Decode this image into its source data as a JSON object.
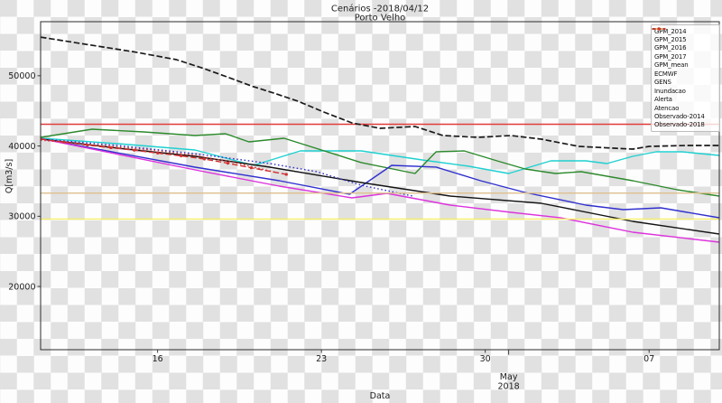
{
  "title": {
    "line1": "Cenários -2018/04/12",
    "line2": "Porto Velho"
  },
  "axes": {
    "ylabel": "Q[m3/s]",
    "xlabel": "Data"
  },
  "chart_data": {
    "type": "line",
    "title": "Cenários -2018/04/12 Porto Velho",
    "xlabel": "Data",
    "ylabel": "Q[m3/s]",
    "x_unit": "days since 2018-04-11",
    "xlim_dates": [
      "2018-04-11",
      "2018-05-10"
    ],
    "xlim": [
      0,
      29
    ],
    "ylim": [
      11000,
      57700
    ],
    "grid": false,
    "legend_position": "upper right",
    "yticks": [
      {
        "value": 50000,
        "label": "50000"
      },
      {
        "value": 40000,
        "label": "40000"
      },
      {
        "value": 30000,
        "label": "30000"
      },
      {
        "value": 20000,
        "label": "20000"
      }
    ],
    "xticks": [
      {
        "day": 5,
        "label": "16"
      },
      {
        "day": 12,
        "label": "23"
      },
      {
        "day": 19,
        "label": "30"
      },
      {
        "day": 26,
        "label": "07"
      }
    ],
    "month_tick": {
      "day": 20,
      "label": "May",
      "year": "2018"
    },
    "series": [
      {
        "name": "GPM_2014",
        "color": "#1fd0d0",
        "style": "solid",
        "marker": false,
        "points": [
          [
            0,
            41100
          ],
          [
            3.3,
            40330
          ],
          [
            6.6,
            39430
          ],
          [
            9.1,
            37250
          ],
          [
            11.1,
            39300
          ],
          [
            13.7,
            39300
          ],
          [
            16.3,
            38020
          ],
          [
            18.3,
            37120
          ],
          [
            20,
            36090
          ],
          [
            21.8,
            37890
          ],
          [
            23.3,
            37890
          ],
          [
            24.2,
            37500
          ],
          [
            25.3,
            38530
          ],
          [
            26.3,
            39170
          ],
          [
            27.4,
            39170
          ],
          [
            29,
            38660
          ]
        ]
      },
      {
        "name": "GPM_2015",
        "color": "#2d8a2d",
        "style": "solid",
        "marker": false,
        "points": [
          [
            0,
            41230
          ],
          [
            2.2,
            42390
          ],
          [
            4.4,
            42000
          ],
          [
            6.6,
            41490
          ],
          [
            7.9,
            41750
          ],
          [
            8.9,
            40590
          ],
          [
            10.4,
            41110
          ],
          [
            13.7,
            37640
          ],
          [
            16,
            36090
          ],
          [
            16.9,
            39170
          ],
          [
            18.1,
            39300
          ],
          [
            19.5,
            37890
          ],
          [
            20.7,
            36730
          ],
          [
            22,
            36090
          ],
          [
            23.1,
            36350
          ],
          [
            25.3,
            35060
          ],
          [
            27.2,
            33770
          ],
          [
            29,
            32870
          ]
        ]
      },
      {
        "name": "GPM_2016",
        "color": "#3030cf",
        "style": "solid",
        "marker": false,
        "points": [
          [
            0,
            41050
          ],
          [
            6.6,
            36990
          ],
          [
            10.2,
            35060
          ],
          [
            13.2,
            33130
          ],
          [
            15,
            37250
          ],
          [
            16.9,
            37000
          ],
          [
            18.8,
            35060
          ],
          [
            20.7,
            33390
          ],
          [
            23.3,
            31590
          ],
          [
            24.9,
            30940
          ],
          [
            26.5,
            31200
          ],
          [
            29,
            29780
          ]
        ]
      },
      {
        "name": "GPM_2017",
        "color": "#dd33dd",
        "style": "solid",
        "marker": false,
        "points": [
          [
            0,
            41050
          ],
          [
            6.6,
            36600
          ],
          [
            10.2,
            34290
          ],
          [
            13.3,
            32610
          ],
          [
            14.8,
            33260
          ],
          [
            17.5,
            31590
          ],
          [
            20.1,
            30560
          ],
          [
            22.2,
            29790
          ],
          [
            25.3,
            27730
          ],
          [
            29,
            26310
          ]
        ]
      },
      {
        "name": "GPM_mean",
        "color": "#141414",
        "style": "solid",
        "marker": false,
        "points": [
          [
            0,
            41000
          ],
          [
            3.3,
            39690
          ],
          [
            6.6,
            38530
          ],
          [
            9.8,
            36990
          ],
          [
            13.7,
            34800
          ],
          [
            17.5,
            32870
          ],
          [
            21.4,
            31840
          ],
          [
            25.3,
            29270
          ],
          [
            29,
            27470
          ]
        ]
      },
      {
        "name": "ECMWF",
        "color": "#e03131",
        "style": "dotted",
        "marker": false,
        "points": [
          [
            0,
            40850
          ],
          [
            2.1,
            40200
          ],
          [
            4.8,
            39430
          ],
          [
            6.6,
            38660
          ],
          [
            8.3,
            37630
          ],
          [
            10.1,
            36220
          ]
        ]
      },
      {
        "name": "GENS",
        "color": "#3333cc",
        "style": "dotted",
        "marker": false,
        "points": [
          [
            0,
            41000
          ],
          [
            3.3,
            40070
          ],
          [
            6.6,
            38910
          ],
          [
            9.8,
            37500
          ],
          [
            11.8,
            36350
          ],
          [
            13.7,
            34410
          ],
          [
            15.9,
            32870
          ]
        ]
      },
      {
        "name": "Inundacao",
        "color": "#e23b3b",
        "style": "solid",
        "marker": false,
        "const": 43100
      },
      {
        "name": "Alerta",
        "color": "#ddc08d",
        "style": "solid",
        "marker": false,
        "const": 33300
      },
      {
        "name": "Atencao",
        "color": "#f7ef69",
        "style": "solid",
        "marker": false,
        "const": 29600
      },
      {
        "name": "Observado-2014",
        "color": "#1a1a1a",
        "style": "dashed",
        "marker": false,
        "points": [
          [
            0,
            55500
          ],
          [
            2,
            54450
          ],
          [
            4,
            53400
          ],
          [
            5.8,
            52300
          ],
          [
            7,
            51000
          ],
          [
            8,
            49800
          ],
          [
            9,
            48550
          ],
          [
            10,
            47500
          ],
          [
            11,
            46380
          ],
          [
            12.1,
            44840
          ],
          [
            13.3,
            43290
          ],
          [
            14.5,
            42520
          ],
          [
            16,
            42780
          ],
          [
            17.2,
            41490
          ],
          [
            18.7,
            41230
          ],
          [
            20.1,
            41490
          ],
          [
            21.4,
            40980
          ],
          [
            23,
            39950
          ],
          [
            24.5,
            39690
          ],
          [
            25.3,
            39560
          ],
          [
            26,
            39950
          ],
          [
            27.6,
            40080
          ],
          [
            29,
            40080
          ]
        ]
      },
      {
        "name": "Observado-2018",
        "color": "#d13030",
        "style": "dashed",
        "marker": true,
        "points": [
          [
            0,
            41000
          ],
          [
            1,
            40560
          ],
          [
            2,
            40120
          ],
          [
            3,
            39750
          ],
          [
            4,
            39400
          ],
          [
            5,
            39000
          ],
          [
            6,
            38600
          ],
          [
            7,
            38150
          ],
          [
            8,
            37550
          ],
          [
            9,
            36900
          ],
          [
            10.5,
            35960
          ]
        ]
      }
    ]
  },
  "legend": {
    "items": [
      {
        "label": "GPM_2014",
        "color": "#1fd0d0",
        "style": "solid",
        "marker": false
      },
      {
        "label": "GPM_2015",
        "color": "#2d8a2d",
        "style": "solid",
        "marker": false
      },
      {
        "label": "GPM_2016",
        "color": "#3030cf",
        "style": "solid",
        "marker": false
      },
      {
        "label": "GPM_2017",
        "color": "#dd33dd",
        "style": "solid",
        "marker": false
      },
      {
        "label": "GPM_mean",
        "color": "#141414",
        "style": "solid",
        "marker": false
      },
      {
        "label": "ECMWF",
        "color": "#e03131",
        "style": "dotted",
        "marker": false
      },
      {
        "label": "GENS",
        "color": "#3333cc",
        "style": "dotted",
        "marker": false
      },
      {
        "label": "Inundacao",
        "color": "#e23b3b",
        "style": "solid",
        "marker": false
      },
      {
        "label": "Alerta",
        "color": "#ddc08d",
        "style": "solid",
        "marker": false
      },
      {
        "label": "Atencao",
        "color": "#f7ef69",
        "style": "solid",
        "marker": false
      },
      {
        "label": "Observado-2014",
        "color": "#1a1a1a",
        "style": "dashed",
        "marker": false
      },
      {
        "label": "Observado-2018",
        "color": "#d13030",
        "style": "dashed",
        "marker": true
      }
    ]
  }
}
